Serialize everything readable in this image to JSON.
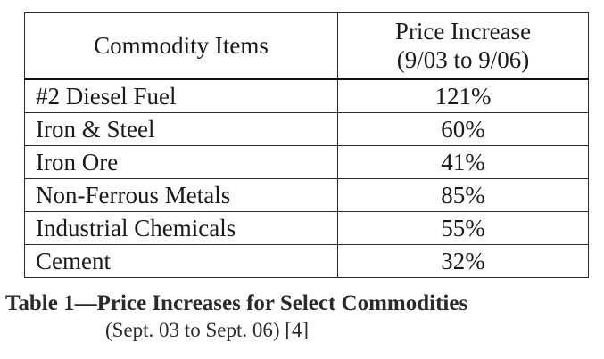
{
  "table": {
    "headers": {
      "items": "Commodity Items",
      "increase_line1": "Price Increase",
      "increase_line2": "(9/03 to 9/06)"
    },
    "rows": [
      {
        "item": "#2 Diesel Fuel",
        "value": "121%"
      },
      {
        "item": "Iron & Steel",
        "value": "60%"
      },
      {
        "item": "Iron Ore",
        "value": "41%"
      },
      {
        "item": "Non-Ferrous Metals",
        "value": "85%"
      },
      {
        "item": "Industrial Chemicals",
        "value": "55%"
      },
      {
        "item": "Cement",
        "value": "32%"
      }
    ]
  },
  "caption": {
    "title": "Table 1—Price Increases for Select Commodities",
    "subtitle": "(Sept. 03 to Sept. 06) [4]"
  }
}
